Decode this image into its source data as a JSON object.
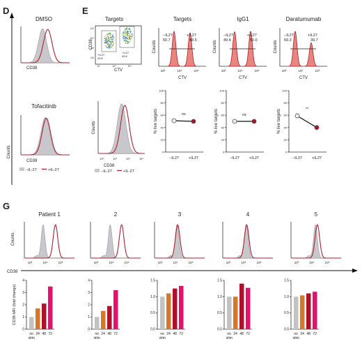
{
  "colors": {
    "gray_fill": "#c8c8cc",
    "gray_stroke": "#9a9aa0",
    "red": "#b01e2e",
    "red_fill": "#e9857e",
    "bar_gray": "#c2c2c2",
    "bar_orange": "#d4782a",
    "bar_crimson": "#b0102c",
    "bar_magenta": "#e3126e",
    "text": "#222222"
  },
  "panels": {
    "D": "D",
    "E": "E",
    "G": "G"
  },
  "shared": {
    "counts": "Counts",
    "cd38": "CD38",
    "ctv": "CTV",
    "minus_il27": "−IL27",
    "plus_il27": "+IL27",
    "minus_il27_legend": "−IL-27",
    "plus_il27_legend": "+IL-27",
    "pct_live": "% live targets",
    "mfi": "CD38 MFI (fold change)"
  },
  "chart_data": [
    {
      "id": "D-DMSO",
      "type": "histogram",
      "title": "DMSO",
      "series": [
        {
          "name": "−IL-27",
          "peak_log10": 3.1,
          "width": 0.28
        },
        {
          "name": "+IL-27",
          "peak_log10": 3.45,
          "width": 0.3
        }
      ]
    },
    {
      "id": "D-Tofacitinib",
      "type": "histogram",
      "title": "Tofacitinib",
      "xlabel": "CD38",
      "ylabel": "Counts",
      "series": [
        {
          "name": "−IL-27",
          "peak_log10": 3.3,
          "width": 0.3
        },
        {
          "name": "+IL-27",
          "peak_log10": 3.35,
          "width": 0.3
        }
      ],
      "legend": [
        "−IL-27",
        "+IL-27"
      ]
    },
    {
      "id": "E-dotplot",
      "type": "scatter",
      "title": "Targets",
      "xlabel": "CTV",
      "ylabel": "CD38",
      "x_ticks": [
        "10⁻",
        "10⁰",
        "10³"
      ],
      "y_ticks": [
        "10⁵",
        "10⁴",
        "10³",
        "10²"
      ],
      "gate_labels": {
        "minus": "−IL27",
        "minus_value": "49.6",
        "plus": "+IL27",
        "plus_value": "49.6"
      }
    },
    {
      "id": "E-Targets",
      "type": "histogram",
      "title": "Targets",
      "xlabel": "CTV",
      "ylabel": "Counts",
      "x_ticks": [
        "10³",
        "10⁴",
        "10⁵"
      ],
      "gates": [
        {
          "label": "−IL27",
          "value": "50.7"
        },
        {
          "label": "+IL27",
          "value": "48.5"
        }
      ]
    },
    {
      "id": "E-IgG1",
      "type": "histogram",
      "title": "IgG1",
      "xlabel": "CTV",
      "ylabel": "Counts",
      "x_ticks": [
        "10³",
        "10⁴",
        "10⁵"
      ],
      "gates": [
        {
          "label": "−IL27",
          "value": "49.4"
        },
        {
          "label": "+IL27",
          "value": "50.0"
        }
      ]
    },
    {
      "id": "E-Daratumumab",
      "type": "histogram",
      "title": "Daratumumab",
      "xlabel": "CTV",
      "ylabel": "Counts",
      "x_ticks": [
        "10³",
        "10⁴",
        "10⁵"
      ],
      "gates": [
        {
          "label": "−IL27",
          "value": "59.3"
        },
        {
          "label": "+IL27",
          "value": "39.7"
        }
      ]
    },
    {
      "id": "E-cd38-hist",
      "type": "histogram",
      "xlabel": "CD38",
      "ylabel": "Counts",
      "x_ticks": [
        "10²",
        "10³",
        "10⁴",
        "10⁵"
      ],
      "series": [
        {
          "name": "−IL-27",
          "peak_log10": 3.5,
          "width": 0.35
        },
        {
          "name": "+IL-27",
          "peak_log10": 3.75,
          "width": 0.35
        }
      ],
      "legend": [
        "−IL-27",
        "+IL-27"
      ]
    },
    {
      "id": "E-live-Targets",
      "type": "line",
      "ylabel": "% live targets",
      "categories": [
        "−IL27",
        "+IL27"
      ],
      "values": [
        51,
        50
      ],
      "ylim": [
        0,
        100
      ],
      "y_ticks": [
        "0",
        "20",
        "40",
        "60",
        "80",
        "100"
      ],
      "annotation": "ns"
    },
    {
      "id": "E-live-IgG1",
      "type": "line",
      "ylabel": "% live targets",
      "categories": [
        "−IL27",
        "+IL27"
      ],
      "values": [
        50,
        50
      ],
      "ylim": [
        0,
        100
      ],
      "y_ticks": [
        "0",
        "20",
        "40",
        "60",
        "80",
        "100"
      ],
      "annotation": "ns"
    },
    {
      "id": "E-live-Daratumumab",
      "type": "line",
      "ylabel": "% live targets",
      "categories": [
        "−IL27",
        "+IL27"
      ],
      "values": [
        59,
        40
      ],
      "ylim": [
        0,
        100
      ],
      "y_ticks": [
        "0",
        "20",
        "40",
        "60",
        "80",
        "100"
      ],
      "annotation": "**"
    },
    {
      "id": "G-hist",
      "type": "histogram",
      "xlabel": "CD38",
      "ylabel": "Counts",
      "x_ticks": [
        "10³",
        "10⁴",
        "10⁵"
      ],
      "panels": [
        {
          "title": "Patient 1",
          "gray_peak": 3.55,
          "red_peak": 4.2
        },
        {
          "title": "2",
          "gray_peak": 3.6,
          "red_peak": 4.2
        },
        {
          "title": "3",
          "gray_peak": 3.75,
          "red_peak": 3.78
        },
        {
          "title": "4",
          "gray_peak": 3.8,
          "red_peak": 3.82
        },
        {
          "title": "5",
          "gray_peak": 3.85,
          "red_peak": 3.95
        }
      ]
    },
    {
      "id": "G-bars",
      "type": "bar",
      "ylabel": "CD38 MFI (fold change)",
      "categories": [
        "no stim",
        "24",
        "48",
        "72"
      ],
      "panels": [
        {
          "ylim": [
            0,
            4
          ],
          "y_ticks": [
            "0",
            "1",
            "2",
            "3",
            "4"
          ],
          "values": [
            1.0,
            1.7,
            2.1,
            3.5
          ]
        },
        {
          "ylim": [
            0,
            4
          ],
          "y_ticks": [
            "0",
            "1",
            "2",
            "3",
            "4"
          ],
          "values": [
            1.0,
            1.5,
            1.9,
            3.2
          ]
        },
        {
          "ylim": [
            0,
            1.5
          ],
          "y_ticks": [
            "0.0",
            "0.5",
            "1.0",
            "1.5"
          ],
          "values": [
            1.0,
            1.1,
            1.25,
            1.33
          ]
        },
        {
          "ylim": [
            0,
            1.5
          ],
          "y_ticks": [
            "0.0",
            "0.5",
            "1.0",
            "1.5"
          ],
          "values": [
            1.0,
            1.0,
            1.4,
            1.27
          ]
        },
        {
          "ylim": [
            0,
            1.5
          ],
          "y_ticks": [
            "0.0",
            "0.5",
            "1.0",
            "1.5"
          ],
          "values": [
            1.0,
            1.04,
            1.1,
            1.15
          ]
        }
      ]
    }
  ]
}
